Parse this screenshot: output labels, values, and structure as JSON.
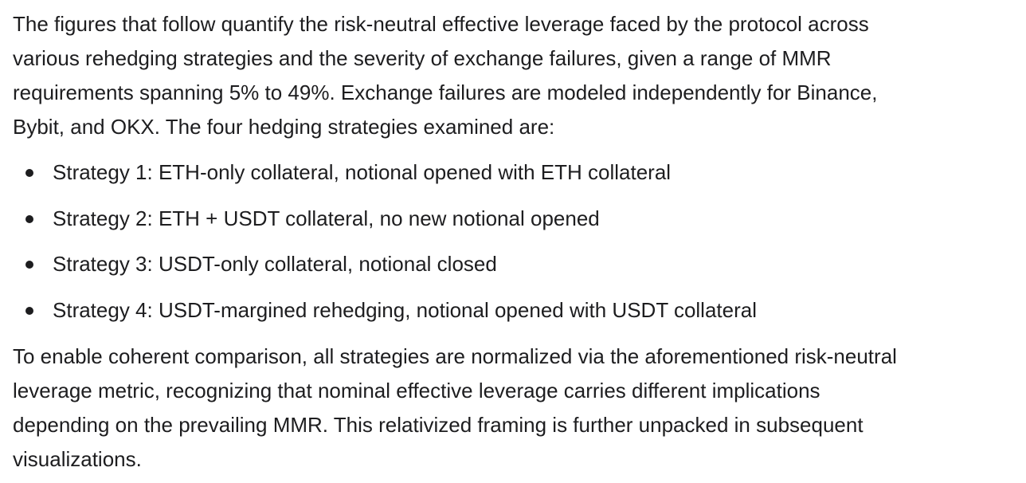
{
  "intro": {
    "lines": [
      "The figures that follow quantify the risk-neutral effective leverage faced by the protocol across",
      "various rehedging strategies and the severity of exchange failures, given a range of MMR",
      "requirements spanning 5% to 49%. Exchange failures are modeled independently for Binance,",
      "Bybit, and OKX. The four hedging strategies examined are:"
    ]
  },
  "strategies": [
    "Strategy 1: ETH-only collateral, notional opened with ETH collateral",
    "Strategy 2: ETH + USDT collateral, no new notional opened",
    "Strategy 3: USDT-only collateral, notional closed",
    "Strategy 4: USDT-margined rehedging, notional opened with USDT collateral"
  ],
  "conclusion": {
    "lines": [
      "To enable coherent comparison, all strategies are normalized via the aforementioned risk-neutral",
      "leverage metric, recognizing that nominal effective leverage carries different implications",
      "depending on the prevailing MMR. This relativized framing is further unpacked in subsequent",
      "visualizations."
    ]
  }
}
